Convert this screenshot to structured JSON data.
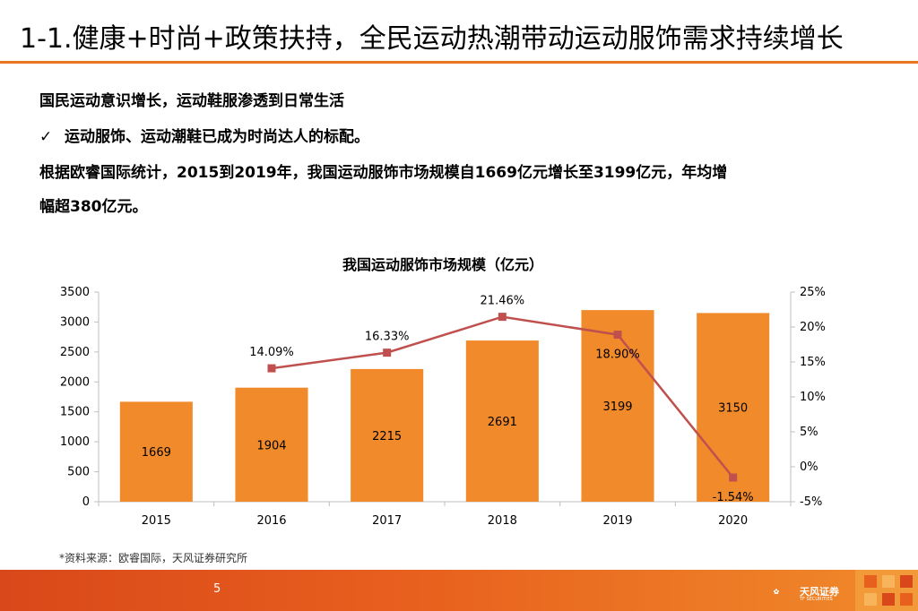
{
  "slide": {
    "title": "1-1.健康+时尚+政策扶持，全民运动热潮带动运动服饰需求持续增长",
    "line1": "国民运动意识增长，运动鞋服渗透到日常生活",
    "check_glyph": "✓",
    "line2": "运动服饰、运动潮鞋已成为时尚达人的标配。",
    "line3": "根据欧睿国际统计，2015到2019年，我国运动服饰市场规模自1669亿元增长至3199亿元，年均增",
    "line4": "幅超380亿元。",
    "source": "*资料来源：欧睿国际，天风证券研究所",
    "page_number": "5",
    "logo_text": "天风证券",
    "logo_subtext": "TF SECURITIES"
  },
  "colors": {
    "bar": "#f08a2a",
    "line": "#c0504d",
    "accent": "#e87722",
    "axis": "#bfbfbf"
  },
  "chart_data": {
    "type": "bar",
    "title": "我国运动服饰市场规模（亿元）",
    "categories": [
      "2015",
      "2016",
      "2017",
      "2018",
      "2019",
      "2020"
    ],
    "series": [
      {
        "type": "bar",
        "axis": "left",
        "values": [
          1669,
          1904,
          2215,
          2691,
          3199,
          3150
        ],
        "labels": [
          "1669",
          "1904",
          "2215",
          "2691",
          "3199",
          "3150"
        ]
      },
      {
        "type": "line",
        "axis": "right",
        "values": [
          null,
          14.09,
          16.33,
          21.46,
          18.9,
          -1.54
        ],
        "labels": [
          "",
          "14.09%",
          "16.33%",
          "21.46%",
          "18.90%",
          "-1.54%"
        ]
      }
    ],
    "ylim_left": [
      0,
      3500
    ],
    "yticks_left": [
      "0",
      "500",
      "1000",
      "1500",
      "2000",
      "2500",
      "3000",
      "3500"
    ],
    "ylim_right": [
      -5,
      25
    ],
    "yticks_right": [
      "-5%",
      "0%",
      "5%",
      "10%",
      "15%",
      "20%",
      "25%"
    ],
    "grid": false,
    "legend": "none"
  }
}
